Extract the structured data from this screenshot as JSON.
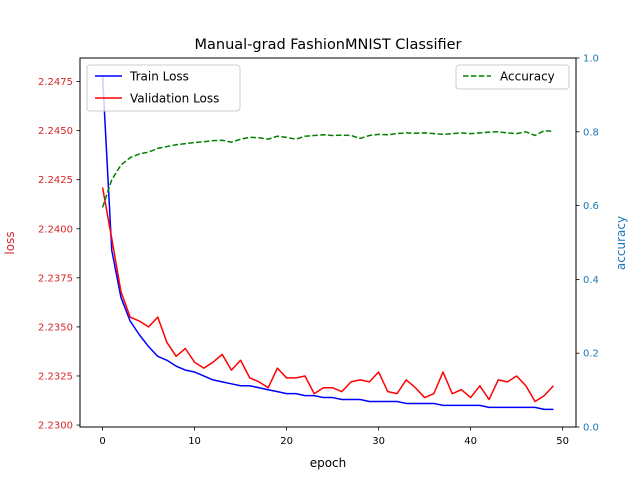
{
  "chart_data": {
    "type": "line",
    "title": "Manual-grad FashionMNIST Classifier",
    "xlabel": "epoch",
    "ylabel_left": "loss",
    "ylabel_right": "accuracy",
    "xlim": [
      -2.45,
      51.45
    ],
    "ylim_left": [
      2.2299,
      2.2487
    ],
    "ylim_right": [
      0.0,
      1.0
    ],
    "x_ticks": [
      0,
      10,
      20,
      30,
      40,
      50
    ],
    "y_left_ticks": [
      "2.2300",
      "2.2325",
      "2.2350",
      "2.2375",
      "2.2400",
      "2.2425",
      "2.2450",
      "2.2475"
    ],
    "y_right_ticks": [
      "0.0",
      "0.2",
      "0.4",
      "0.6",
      "0.8",
      "1.0"
    ],
    "grid": false,
    "left_axis_color": "#d62728",
    "right_axis_color": "#1f77b4",
    "x": [
      0,
      1,
      2,
      3,
      4,
      5,
      6,
      7,
      8,
      9,
      10,
      11,
      12,
      13,
      14,
      15,
      16,
      17,
      18,
      19,
      20,
      21,
      22,
      23,
      24,
      25,
      26,
      27,
      28,
      29,
      30,
      31,
      32,
      33,
      34,
      35,
      36,
      37,
      38,
      39,
      40,
      41,
      42,
      43,
      44,
      45,
      46,
      47,
      48,
      49
    ],
    "series": [
      {
        "name": "Train Loss",
        "axis": "left",
        "color": "#0000ff",
        "style": "solid",
        "values": [
          2.2478,
          2.2389,
          2.2365,
          2.2353,
          2.2346,
          2.234,
          2.2335,
          2.2333,
          2.233,
          2.2328,
          2.2327,
          2.2325,
          2.2323,
          2.2322,
          2.2321,
          2.232,
          2.232,
          2.2319,
          2.2318,
          2.2317,
          2.2316,
          2.2316,
          2.2315,
          2.2315,
          2.2314,
          2.2314,
          2.2313,
          2.2313,
          2.2313,
          2.2312,
          2.2312,
          2.2312,
          2.2312,
          2.2311,
          2.2311,
          2.2311,
          2.2311,
          2.231,
          2.231,
          2.231,
          2.231,
          2.231,
          2.2309,
          2.2309,
          2.2309,
          2.2309,
          2.2309,
          2.2309,
          2.2308,
          2.2308
        ]
      },
      {
        "name": "Validation Loss",
        "axis": "left",
        "color": "#ff0000",
        "style": "solid",
        "values": [
          2.2421,
          2.2395,
          2.2368,
          2.2355,
          2.2353,
          2.235,
          2.2355,
          2.2342,
          2.2335,
          2.2339,
          2.2332,
          2.2329,
          2.2332,
          2.2336,
          2.2328,
          2.2333,
          2.2324,
          2.2322,
          2.2319,
          2.2329,
          2.2324,
          2.2324,
          2.2325,
          2.2316,
          2.2319,
          2.2319,
          2.2317,
          2.2322,
          2.2323,
          2.2322,
          2.2327,
          2.2317,
          2.2316,
          2.2323,
          2.2319,
          2.2314,
          2.2316,
          2.2327,
          2.2316,
          2.2318,
          2.2314,
          2.232,
          2.2313,
          2.2323,
          2.2322,
          2.2325,
          2.232,
          2.2312,
          2.2315,
          2.232
        ]
      },
      {
        "name": "Accuracy",
        "axis": "right",
        "color": "#008000",
        "style": "dashed",
        "values": [
          0.595,
          0.67,
          0.71,
          0.73,
          0.74,
          0.745,
          0.755,
          0.76,
          0.765,
          0.768,
          0.771,
          0.773,
          0.776,
          0.777,
          0.772,
          0.78,
          0.785,
          0.784,
          0.78,
          0.788,
          0.785,
          0.78,
          0.788,
          0.79,
          0.792,
          0.79,
          0.791,
          0.79,
          0.782,
          0.79,
          0.793,
          0.792,
          0.795,
          0.797,
          0.796,
          0.797,
          0.795,
          0.793,
          0.795,
          0.797,
          0.795,
          0.797,
          0.799,
          0.8,
          0.797,
          0.795,
          0.8,
          0.79,
          0.803,
          0.801
        ]
      }
    ]
  }
}
